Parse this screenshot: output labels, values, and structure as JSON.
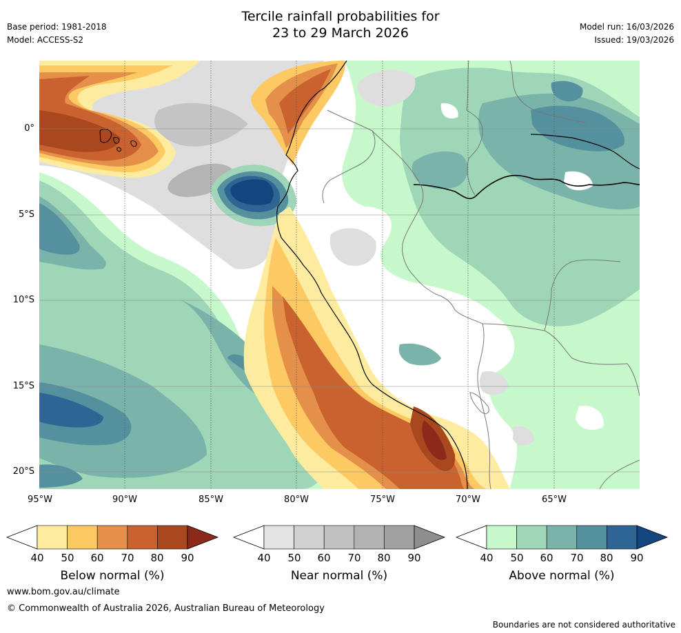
{
  "title": {
    "line1": "Tercile rainfall probabilities for",
    "line2": "23 to 29 March 2026"
  },
  "header_left": {
    "base_period": "Base period: 1981-2018",
    "model": "Model: ACCESS-S2"
  },
  "header_right": {
    "model_run": "Model run: 16/03/2026",
    "issued": "Issued: 19/03/2026"
  },
  "map": {
    "lon_ticks": [
      "95°W",
      "90°W",
      "85°W",
      "80°W",
      "75°W",
      "70°W",
      "65°W"
    ],
    "lat_ticks": [
      "0°",
      "5°S",
      "10°S",
      "15°S",
      "20°S"
    ]
  },
  "colorbars": [
    {
      "name": "below",
      "label": "Below normal (%)",
      "ticks": [
        "40",
        "50",
        "60",
        "70",
        "80",
        "90"
      ],
      "colors": [
        "#ffffff",
        "#fdeca0",
        "#fdc963",
        "#e4904a",
        "#c9622f",
        "#a9471f",
        "#8b2a1a"
      ]
    },
    {
      "name": "near",
      "label": "Near normal (%)",
      "ticks": [
        "40",
        "50",
        "60",
        "70",
        "80",
        "90"
      ],
      "colors": [
        "#ffffff",
        "#e3e3e3",
        "#d1d1d1",
        "#c1c1c1",
        "#b2b2b2",
        "#a2a2a2",
        "#8e8e8e"
      ]
    },
    {
      "name": "above",
      "label": "Above normal (%)",
      "ticks": [
        "40",
        "50",
        "60",
        "70",
        "80",
        "90"
      ],
      "colors": [
        "#ffffff",
        "#c7f8cc",
        "#9fd6b8",
        "#7ab3aa",
        "#55909e",
        "#2f6595",
        "#13457e"
      ]
    }
  ],
  "footer": {
    "website": "www.bom.gov.au/climate",
    "copyright": "© Commonwealth of Australia 2026, Australian Bureau of Meteorology",
    "disclaimer": "Boundaries are not considered authoritative"
  }
}
